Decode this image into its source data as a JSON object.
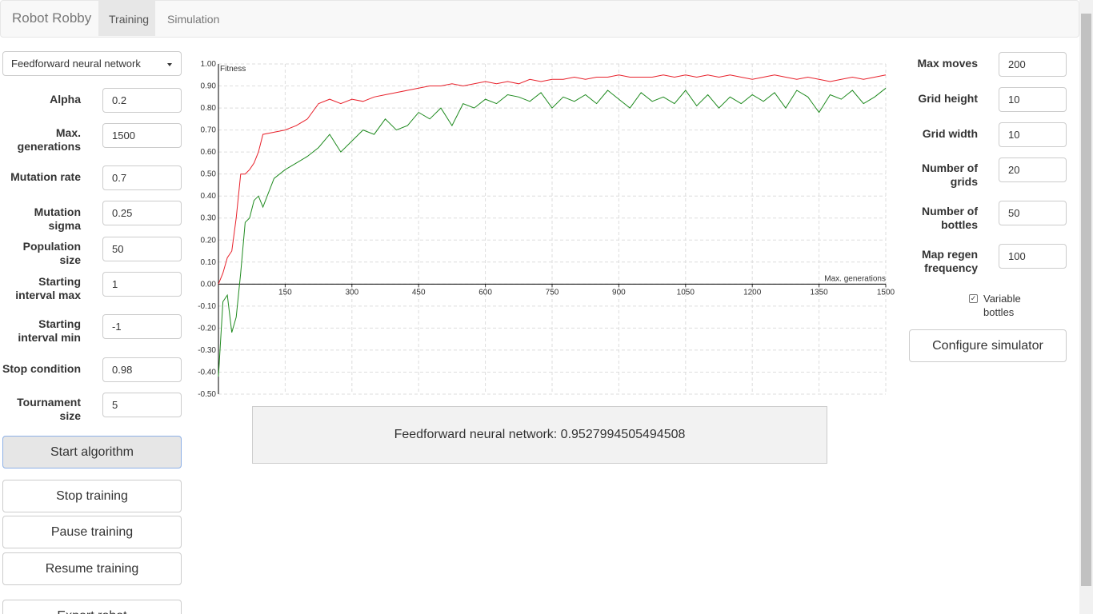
{
  "navbar": {
    "brand": "Robot Robby",
    "tabs": [
      "Training",
      "Simulation"
    ]
  },
  "left_panel": {
    "algorithm": "Feedforward neural network",
    "fields": [
      {
        "label": "Alpha",
        "value": "0.2"
      },
      {
        "label": "Max. generations",
        "value": "1500"
      },
      {
        "label": "Mutation rate",
        "value": "0.7"
      },
      {
        "label": "Mutation sigma",
        "value": "0.25"
      },
      {
        "label": "Population size",
        "value": "50"
      },
      {
        "label": "Starting interval max",
        "value": "1"
      },
      {
        "label": "Starting interval min",
        "value": "-1"
      },
      {
        "label": "Stop condition",
        "value": "0.98"
      },
      {
        "label": "Tournament size",
        "value": "5"
      }
    ],
    "buttons": [
      "Start algorithm",
      "Stop training",
      "Pause training",
      "Resume training",
      "Export robot"
    ]
  },
  "result": "Feedforward neural network: 0.9527994505494508",
  "right_panel": {
    "fields": [
      {
        "label": "Max moves",
        "value": "200"
      },
      {
        "label": "Grid height",
        "value": "10"
      },
      {
        "label": "Grid width",
        "value": "10"
      },
      {
        "label": "Number of grids",
        "value": "20"
      },
      {
        "label": "Number of bottles",
        "value": "50"
      },
      {
        "label": "Map regen frequency",
        "value": "100"
      }
    ],
    "checkbox": "Variable bottles",
    "button": "Configure simulator"
  },
  "chart_data": {
    "type": "line",
    "y_label": "Fitness",
    "x_label": "Max. generations",
    "xlim": [
      0,
      1500
    ],
    "ylim": [
      -0.5,
      1.0
    ],
    "xticks": [
      150,
      300,
      450,
      600,
      750,
      900,
      1050,
      1200,
      1350,
      1500
    ],
    "yticks": [
      {
        "value": -0.5,
        "label": "-0.50"
      },
      {
        "value": -0.4,
        "label": "-0.40"
      },
      {
        "value": -0.3,
        "label": "-0.30"
      },
      {
        "value": -0.2,
        "label": "-0.20"
      },
      {
        "value": -0.1,
        "label": "-0.10"
      },
      {
        "value": 0,
        "label": "0.00"
      },
      {
        "value": 0.1,
        "label": "0.10"
      },
      {
        "value": 0.2,
        "label": "0.20"
      },
      {
        "value": 0.3,
        "label": "0.30"
      },
      {
        "value": 0.4,
        "label": "0.40"
      },
      {
        "value": 0.5,
        "label": "0.50"
      },
      {
        "value": 0.6,
        "label": "0.60"
      },
      {
        "value": 0.7,
        "label": "0.70"
      },
      {
        "value": 0.8,
        "label": "0.80"
      },
      {
        "value": 0.9,
        "label": "0.90"
      },
      {
        "value": 1.0,
        "label": "1.00"
      }
    ],
    "grid": true,
    "x": [
      0,
      10,
      20,
      30,
      40,
      50,
      60,
      70,
      80,
      90,
      100,
      125,
      150,
      175,
      200,
      225,
      250,
      275,
      300,
      325,
      350,
      375,
      400,
      425,
      450,
      475,
      500,
      525,
      550,
      575,
      600,
      625,
      650,
      675,
      700,
      725,
      750,
      775,
      800,
      825,
      850,
      875,
      900,
      925,
      950,
      975,
      1000,
      1025,
      1050,
      1075,
      1100,
      1125,
      1150,
      1175,
      1200,
      1225,
      1250,
      1275,
      1300,
      1325,
      1350,
      1375,
      1400,
      1425,
      1450,
      1475,
      1500
    ],
    "series": [
      {
        "color": "#e8202a",
        "values": [
          0.0,
          0.05,
          0.12,
          0.15,
          0.3,
          0.5,
          0.5,
          0.52,
          0.55,
          0.6,
          0.68,
          0.69,
          0.7,
          0.72,
          0.75,
          0.82,
          0.84,
          0.82,
          0.84,
          0.83,
          0.85,
          0.86,
          0.87,
          0.88,
          0.89,
          0.9,
          0.9,
          0.91,
          0.9,
          0.91,
          0.92,
          0.91,
          0.92,
          0.91,
          0.93,
          0.92,
          0.93,
          0.93,
          0.94,
          0.93,
          0.94,
          0.94,
          0.95,
          0.94,
          0.94,
          0.94,
          0.95,
          0.94,
          0.95,
          0.94,
          0.95,
          0.94,
          0.95,
          0.94,
          0.93,
          0.94,
          0.95,
          0.94,
          0.93,
          0.94,
          0.93,
          0.92,
          0.93,
          0.94,
          0.93,
          0.94,
          0.95
        ]
      },
      {
        "color": "#1f8a1f",
        "values": [
          -0.42,
          -0.08,
          -0.05,
          -0.22,
          -0.15,
          0.05,
          0.28,
          0.3,
          0.38,
          0.4,
          0.35,
          0.48,
          0.52,
          0.55,
          0.58,
          0.62,
          0.68,
          0.6,
          0.65,
          0.7,
          0.68,
          0.75,
          0.7,
          0.72,
          0.78,
          0.75,
          0.8,
          0.72,
          0.82,
          0.8,
          0.84,
          0.82,
          0.86,
          0.85,
          0.83,
          0.87,
          0.8,
          0.85,
          0.83,
          0.86,
          0.82,
          0.88,
          0.84,
          0.8,
          0.87,
          0.83,
          0.85,
          0.82,
          0.88,
          0.81,
          0.86,
          0.8,
          0.85,
          0.82,
          0.86,
          0.83,
          0.87,
          0.8,
          0.88,
          0.85,
          0.78,
          0.86,
          0.84,
          0.88,
          0.82,
          0.85,
          0.89
        ]
      }
    ]
  }
}
